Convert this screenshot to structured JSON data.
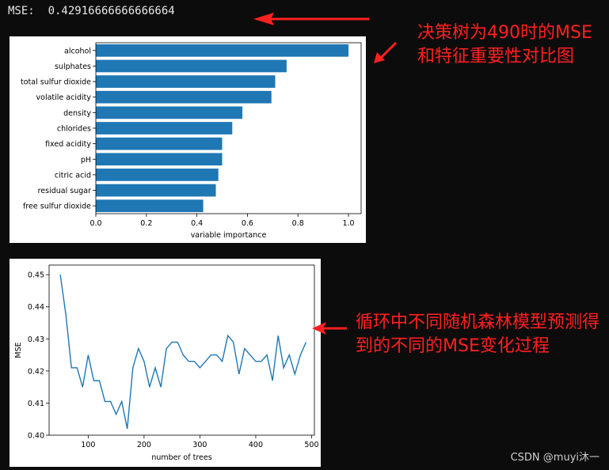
{
  "console": {
    "line": "MSE:  0.42916666666666664"
  },
  "annotations": {
    "top": "决策树为490时的MSE和特征重要性对比图",
    "bottom": "循环中不同随机森林模型预测得到的不同的MSE变化过程"
  },
  "watermark": "CSDN @muyi沐一",
  "colors": {
    "background": "#0c0c0c",
    "bar": "#1f77b4",
    "line": "#1f77b4",
    "annotation": "#ff2020"
  },
  "icons": [
    "arrow-left-icon"
  ],
  "chart_data": [
    {
      "type": "bar",
      "orientation": "horizontal",
      "categories": [
        "alcohol",
        "sulphates",
        "total sulfur dioxide",
        "volatile acidity",
        "density",
        "chlorides",
        "fixed acidity",
        "pH",
        "citric acid",
        "residual sugar",
        "free sulfur dioxide"
      ],
      "values": [
        1.0,
        0.755,
        0.71,
        0.695,
        0.58,
        0.54,
        0.5,
        0.5,
        0.485,
        0.475,
        0.425
      ],
      "xlabel": "variable importance",
      "ylabel": "",
      "xlim": [
        0,
        1.05
      ],
      "xticks": [
        "0.0",
        "0.2",
        "0.4",
        "0.6",
        "0.8",
        "1.0"
      ],
      "grid": false
    },
    {
      "type": "line",
      "x": [
        50,
        60,
        70,
        80,
        90,
        100,
        110,
        120,
        130,
        140,
        150,
        160,
        170,
        180,
        190,
        200,
        210,
        220,
        230,
        240,
        250,
        260,
        270,
        280,
        290,
        300,
        310,
        320,
        330,
        340,
        350,
        360,
        370,
        380,
        390,
        400,
        410,
        420,
        430,
        440,
        450,
        460,
        470,
        480,
        490
      ],
      "values": [
        0.45,
        0.4375,
        0.421,
        0.421,
        0.415,
        0.425,
        0.417,
        0.417,
        0.4105,
        0.4105,
        0.4065,
        0.4105,
        0.402,
        0.421,
        0.427,
        0.423,
        0.415,
        0.421,
        0.415,
        0.427,
        0.429,
        0.429,
        0.425,
        0.423,
        0.423,
        0.421,
        0.423,
        0.425,
        0.425,
        0.423,
        0.431,
        0.429,
        0.419,
        0.427,
        0.425,
        0.423,
        0.423,
        0.425,
        0.417,
        0.431,
        0.421,
        0.425,
        0.419,
        0.425,
        0.429
      ],
      "xlabel": "number of trees",
      "ylabel": "MSE",
      "xlim": [
        30,
        505
      ],
      "ylim": [
        0.4,
        0.453
      ],
      "xticks": [
        100,
        200,
        300,
        400,
        500
      ],
      "yticks": [
        "0.40",
        "0.41",
        "0.42",
        "0.43",
        "0.44",
        "0.45"
      ],
      "grid": false
    }
  ]
}
